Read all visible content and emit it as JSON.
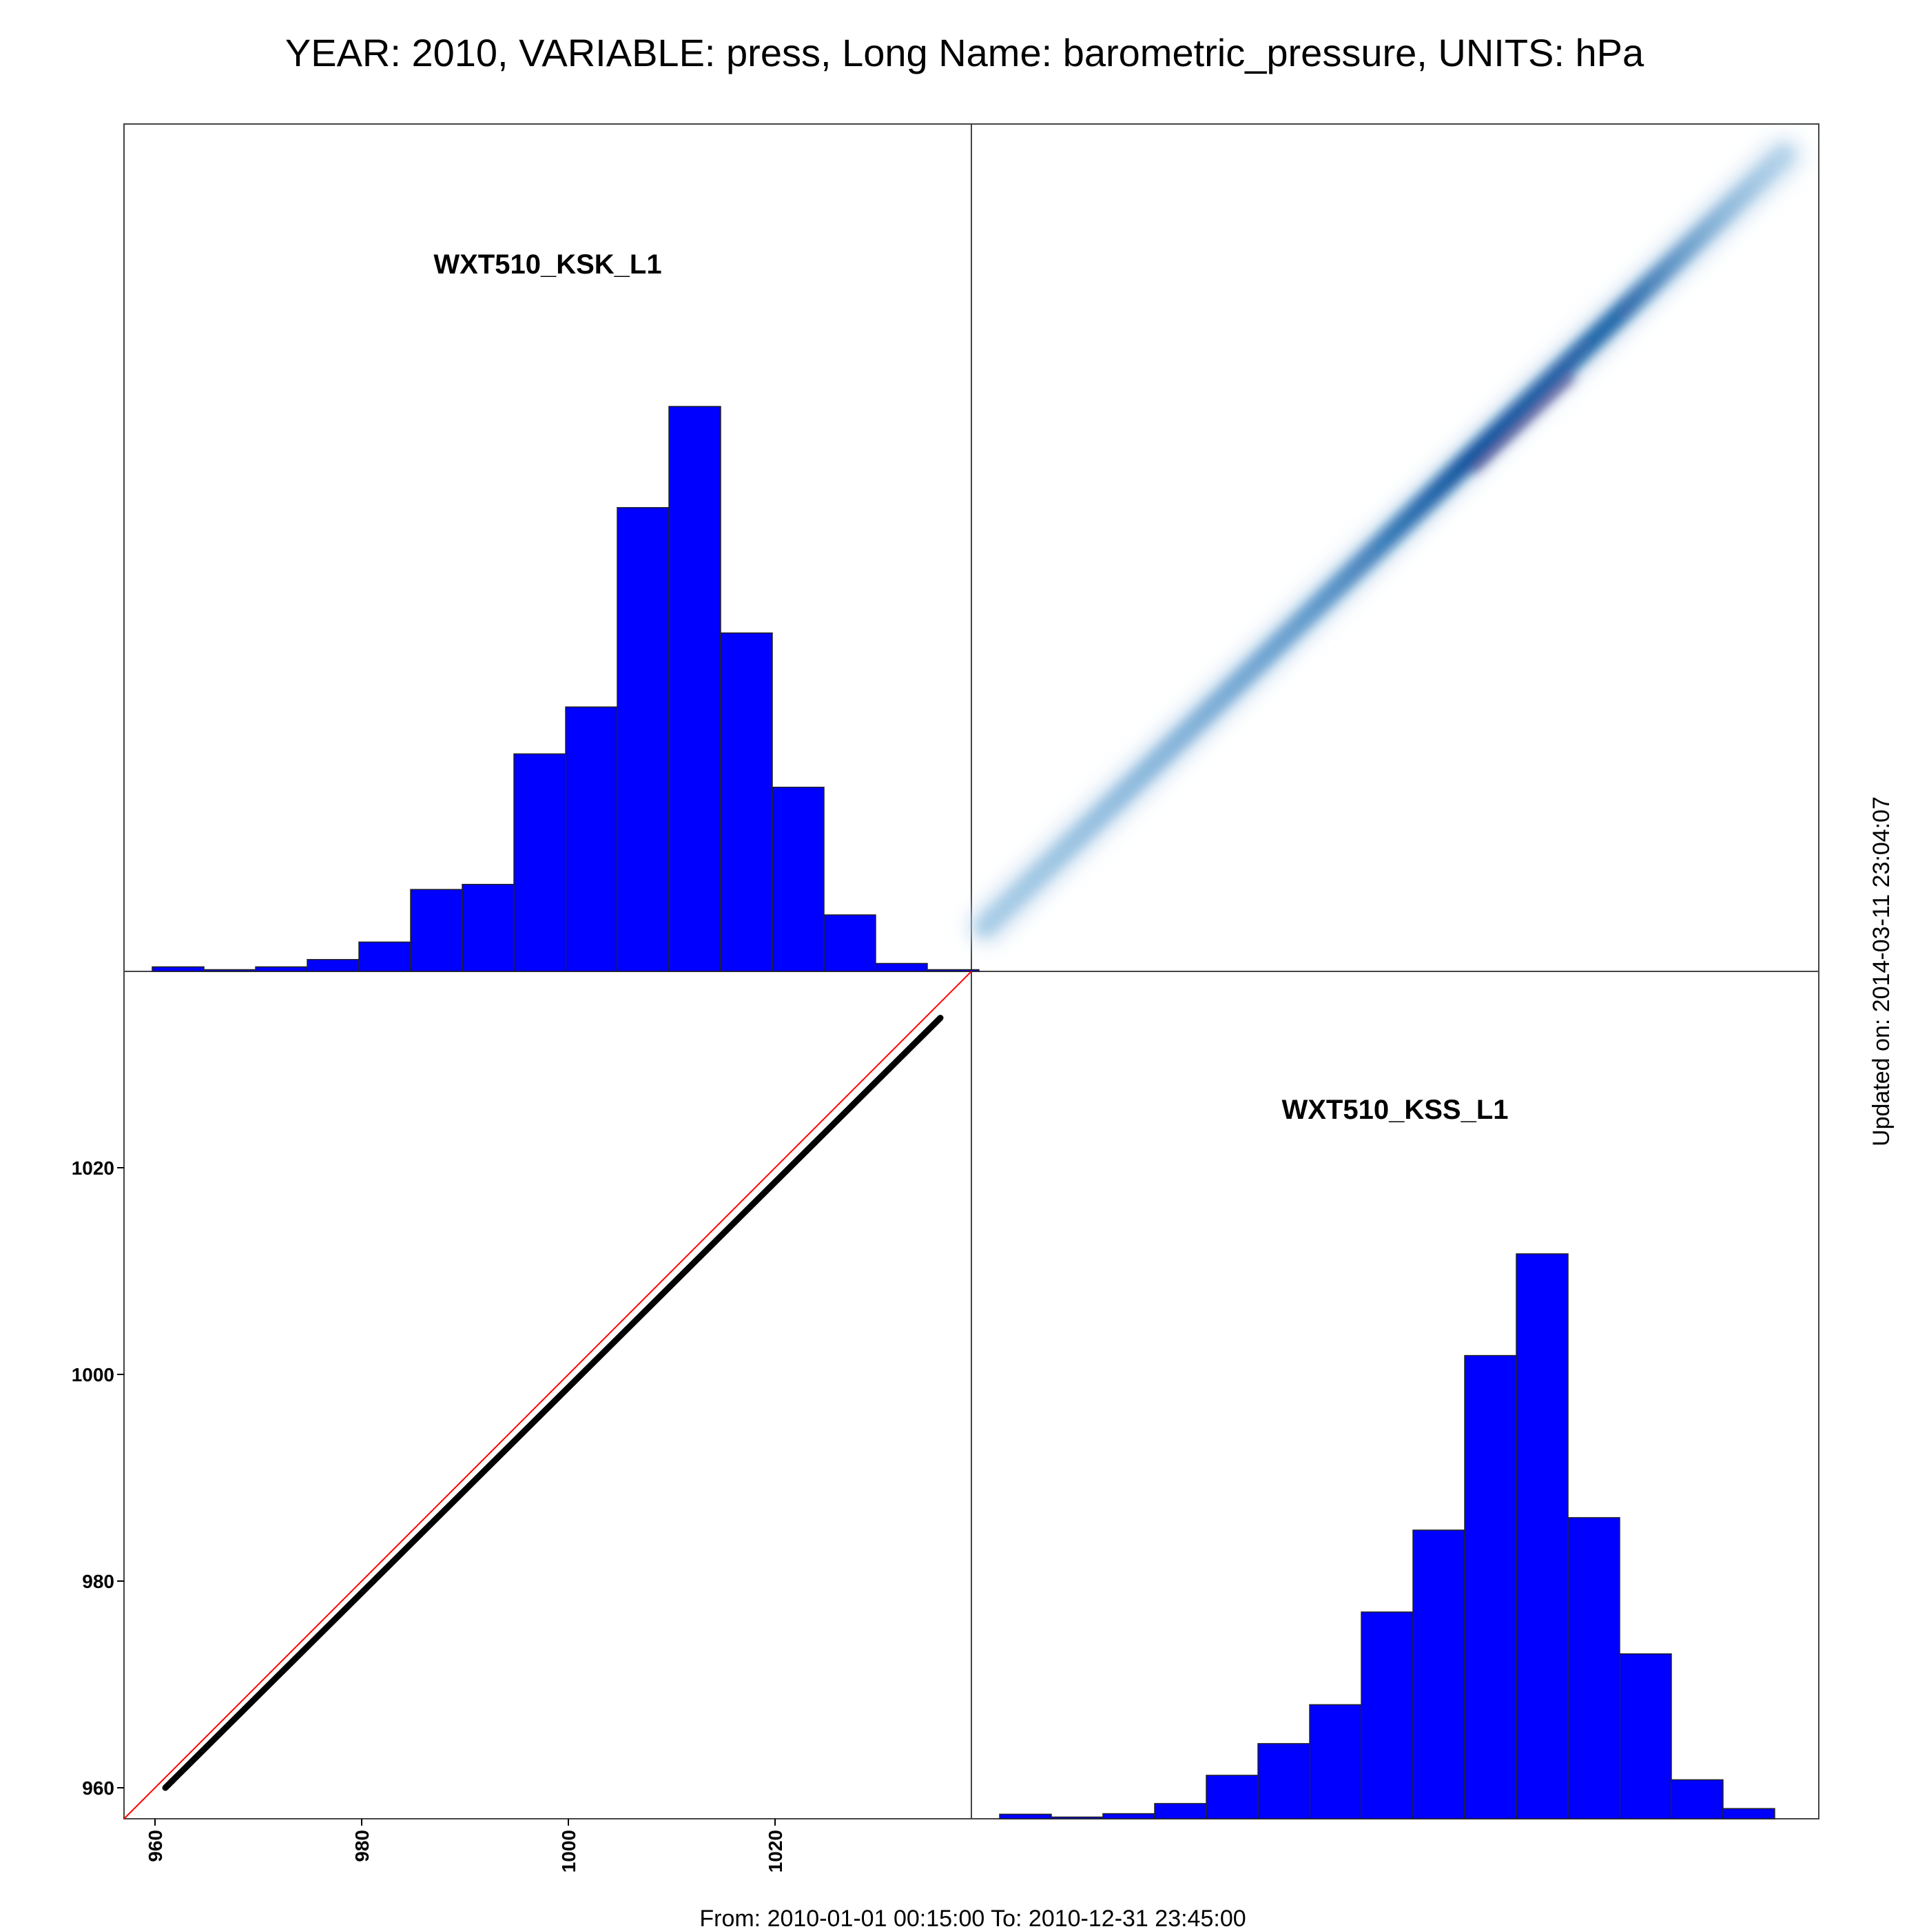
{
  "title": "YEAR: 2010, VARIABLE: press, Long Name: barometric_pressure, UNITS: hPa",
  "footer": "From: 2010-01-01 00:15:00 To: 2010-12-31 23:45:00",
  "updated": "Updated on: 2014-03-11 23:04:07",
  "colors": {
    "bars": "#0000ff",
    "ref_line": "#ff0000",
    "points": "#000000",
    "density": "#08519c"
  },
  "chart_data": [
    {
      "type": "bar",
      "panel": "top-left",
      "title": "WXT510_KSK_L1",
      "bin_edges": [
        960,
        965,
        970,
        975,
        980,
        985,
        990,
        995,
        1000,
        1005,
        1010,
        1015,
        1020,
        1025,
        1030,
        1035,
        1040
      ],
      "values": [
        0.8,
        0.3,
        0.8,
        2.1,
        5.2,
        14.5,
        15.4,
        38.5,
        46.8,
        82.1,
        100,
        59.9,
        32.6,
        10.0,
        1.4,
        0.3
      ],
      "ylim": [
        0,
        100
      ]
    },
    {
      "type": "heatmap",
      "panel": "top-right",
      "description": "smoothed density of WXT510_KSS_L1 vs WXT510_KSK_L1",
      "x_range": [
        960,
        1038
      ],
      "y_range": [
        960,
        1038
      ]
    },
    {
      "type": "scatter",
      "panel": "bottom-left",
      "x_ticks": [
        960,
        980,
        1000,
        1020
      ],
      "y_ticks": [
        960,
        980,
        1000,
        1020
      ],
      "xlim": [
        957,
        1039
      ],
      "ylim": [
        957,
        1039
      ],
      "reference_line": "y = x",
      "points_segment": {
        "x": [
          961,
          1036
        ],
        "y": [
          960,
          1034.5
        ]
      }
    },
    {
      "type": "bar",
      "panel": "bottom-right",
      "title": "WXT510_KSS_L1",
      "bin_edges": [
        960,
        965,
        970,
        975,
        980,
        985,
        990,
        995,
        1000,
        1005,
        1010,
        1015,
        1020,
        1025,
        1030,
        1035,
        1040
      ],
      "values": [
        0.8,
        0.3,
        0.9,
        2.7,
        7.7,
        13.3,
        20.2,
        36.6,
        51.1,
        82.0,
        100,
        53.3,
        29.2,
        6.9,
        1.8,
        0.0
      ],
      "ylim": [
        0,
        100
      ]
    }
  ]
}
